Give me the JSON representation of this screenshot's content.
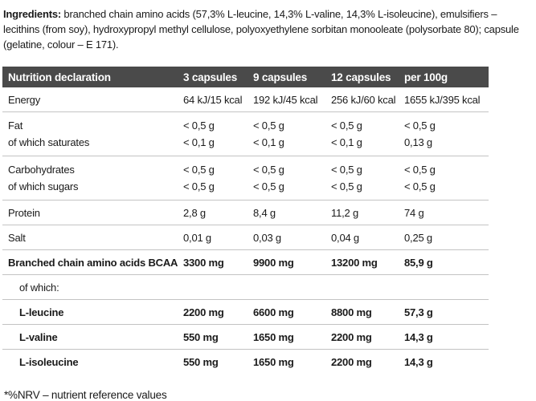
{
  "ingredients": {
    "label": "Ingredients:",
    "text": " branched chain amino acids (57,3% L-leucine, 14,3% L-valine, 14,3% L-isoleucine), emulsifiers – lecithins (from soy), hydroxypropyl methyl cellulose, polyoxyethylene sorbitan monooleate (polysorbate 80); capsule (gelatine, colour – E 171)."
  },
  "table": {
    "headers": [
      "Nutrition declaration",
      "3 capsules",
      "9 capsules",
      "12 capsules",
      "per 100g"
    ],
    "rows": [
      {
        "label": "Energy",
        "values": [
          "64 kJ/15 kcal",
          "192 kJ/45 kcal",
          "256 kJ/60 kcal",
          "1655 kJ/395 kcal"
        ]
      },
      {
        "label": "Fat",
        "values": [
          "< 0,5 g",
          "< 0,5 g",
          "< 0,5 g",
          "< 0,5 g"
        ]
      },
      {
        "label": "of which saturates",
        "values": [
          "< 0,1 g",
          "< 0,1 g",
          "< 0,1 g",
          "0,13 g"
        ]
      },
      {
        "label": "Carbohydrates",
        "values": [
          "< 0,5 g",
          "< 0,5 g",
          "< 0,5 g",
          "< 0,5 g"
        ]
      },
      {
        "label": "of which sugars",
        "values": [
          "< 0,5 g",
          "< 0,5 g",
          "< 0,5 g",
          "< 0,5 g"
        ]
      },
      {
        "label": "Protein",
        "values": [
          "2,8 g",
          "8,4 g",
          "11,2 g",
          "74 g"
        ]
      },
      {
        "label": "Salt",
        "values": [
          "0,01 g",
          "0,03 g",
          "0,04 g",
          "0,25 g"
        ]
      },
      {
        "label": "Branched chain amino acids BCAA",
        "values": [
          "3300 mg",
          "9900 mg",
          "13200 mg",
          "85,9 g"
        ]
      },
      {
        "label": "of which:",
        "values": [
          "",
          "",
          "",
          ""
        ]
      },
      {
        "label": "L-leucine",
        "values": [
          "2200 mg",
          "6600 mg",
          "8800 mg",
          "57,3 g"
        ]
      },
      {
        "label": "L-valine",
        "values": [
          "550 mg",
          "1650 mg",
          "2200 mg",
          "14,3 g"
        ]
      },
      {
        "label": "L-isoleucine",
        "values": [
          "550 mg",
          "1650 mg",
          "2200 mg",
          "14,3 g"
        ]
      }
    ]
  },
  "footnote": "*%NRV – nutrient reference values",
  "colors": {
    "header_bg": "#4a4a4a",
    "header_text": "#ffffff",
    "row_border": "#c3c3c3",
    "body_text": "#1a1a1a"
  }
}
